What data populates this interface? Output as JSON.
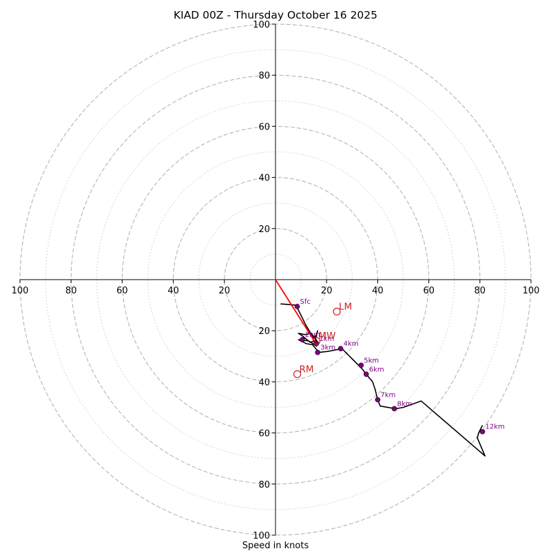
{
  "chart_data": {
    "type": "hodograph",
    "title": "KIAD 00Z - Thursday October 16 2025",
    "xlabel": "Speed in knots",
    "units": "knots",
    "range": [
      -100,
      100
    ],
    "ticks": {
      "x": [
        -100,
        -80,
        -60,
        -40,
        -20,
        20,
        40,
        60,
        80,
        100
      ],
      "x_labels": [
        "100",
        "80",
        "60",
        "40",
        "20",
        "20",
        "40",
        "60",
        "80",
        "100"
      ],
      "y": [
        100,
        80,
        60,
        40,
        20,
        -20,
        -40,
        -60,
        -80,
        -100
      ],
      "y_labels": [
        "100",
        "80",
        "60",
        "40",
        "20",
        "20",
        "40",
        "60",
        "80",
        "100"
      ]
    },
    "rings": {
      "dashed": [
        20,
        40,
        60,
        80,
        100
      ],
      "dotted": [
        10,
        30,
        50,
        70,
        90
      ]
    },
    "profile": {
      "color": "#000000",
      "points": [
        [
          2,
          -9.5
        ],
        [
          8,
          -10
        ],
        [
          12,
          -18
        ],
        [
          15,
          -23
        ],
        [
          16,
          -21.5
        ],
        [
          16.5,
          -20
        ],
        [
          15.5,
          -24
        ],
        [
          13.5,
          -24.5
        ],
        [
          10.5,
          -22
        ],
        [
          9,
          -21
        ],
        [
          11.5,
          -21.5
        ],
        [
          14,
          -21
        ],
        [
          17,
          -25
        ],
        [
          16,
          -26
        ],
        [
          13,
          -24
        ],
        [
          9,
          -23.5
        ],
        [
          12,
          -25
        ],
        [
          14.5,
          -25.5
        ],
        [
          17,
          -28.5
        ],
        [
          21,
          -28
        ],
        [
          26,
          -27
        ],
        [
          30,
          -31
        ],
        [
          34,
          -35
        ],
        [
          35.5,
          -37
        ],
        [
          38,
          -40
        ],
        [
          39,
          -43
        ],
        [
          40,
          -47
        ],
        [
          41,
          -49.5
        ],
        [
          47,
          -50.5
        ],
        [
          50,
          -50
        ],
        [
          57,
          -47.5
        ],
        [
          82,
          -69
        ],
        [
          79,
          -62
        ],
        [
          79.5,
          -60
        ],
        [
          81,
          -57
        ]
      ]
    },
    "height_markers": {
      "color": "#800080",
      "points": [
        {
          "label": "Sfc",
          "u": 8.5,
          "v": -10.5
        },
        {
          "label": "1km",
          "u": 16,
          "v": -25
        },
        {
          "label": "2km",
          "u": 10.5,
          "v": -23.5
        },
        {
          "label": "3km",
          "u": 16.5,
          "v": -28.5
        },
        {
          "label": "4km",
          "u": 25.5,
          "v": -27
        },
        {
          "label": "5km",
          "u": 33.5,
          "v": -33.5
        },
        {
          "label": "6km",
          "u": 35.5,
          "v": -37
        },
        {
          "label": "7km",
          "u": 40,
          "v": -47
        },
        {
          "label": "8km",
          "u": 46.5,
          "v": -50.5
        },
        {
          "label": "12km",
          "u": 81,
          "v": -59.5
        }
      ]
    },
    "motions": {
      "color": "#cc2222",
      "points": [
        {
          "label": "LM",
          "u": 24,
          "v": -12.5
        },
        {
          "label": "MW",
          "u": 16,
          "v": -24
        },
        {
          "label": "RM",
          "u": 8.5,
          "v": -37
        }
      ]
    },
    "shear_vector": {
      "color": "#ff0000",
      "from": [
        0,
        0
      ],
      "to": [
        15.5,
        -24.5
      ]
    }
  }
}
